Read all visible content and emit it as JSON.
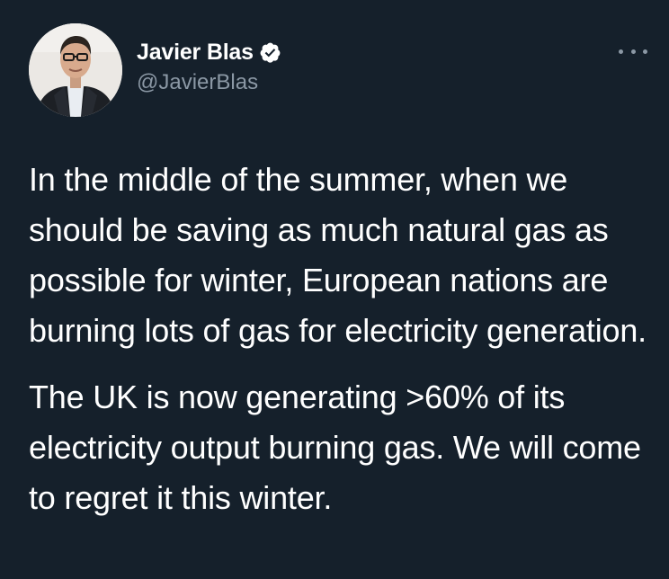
{
  "tweet": {
    "author": {
      "display_name": "Javier Blas",
      "handle": "@JavierBlas",
      "verified_icon": "verified-badge-icon",
      "avatar_icon": "profile-photo"
    },
    "more_icon": "more-options-icon",
    "paragraphs": [
      "In the middle of the summer, when we should be saving as much natural gas as possible for winter, European nations are burning lots of gas for electricity generation.",
      "The UK is now generating >60% of its electricity output burning gas. We will come to regret it this winter."
    ]
  },
  "colors": {
    "background": "#15202b",
    "text_primary": "#ffffff",
    "text_secondary": "#8b98a5"
  }
}
